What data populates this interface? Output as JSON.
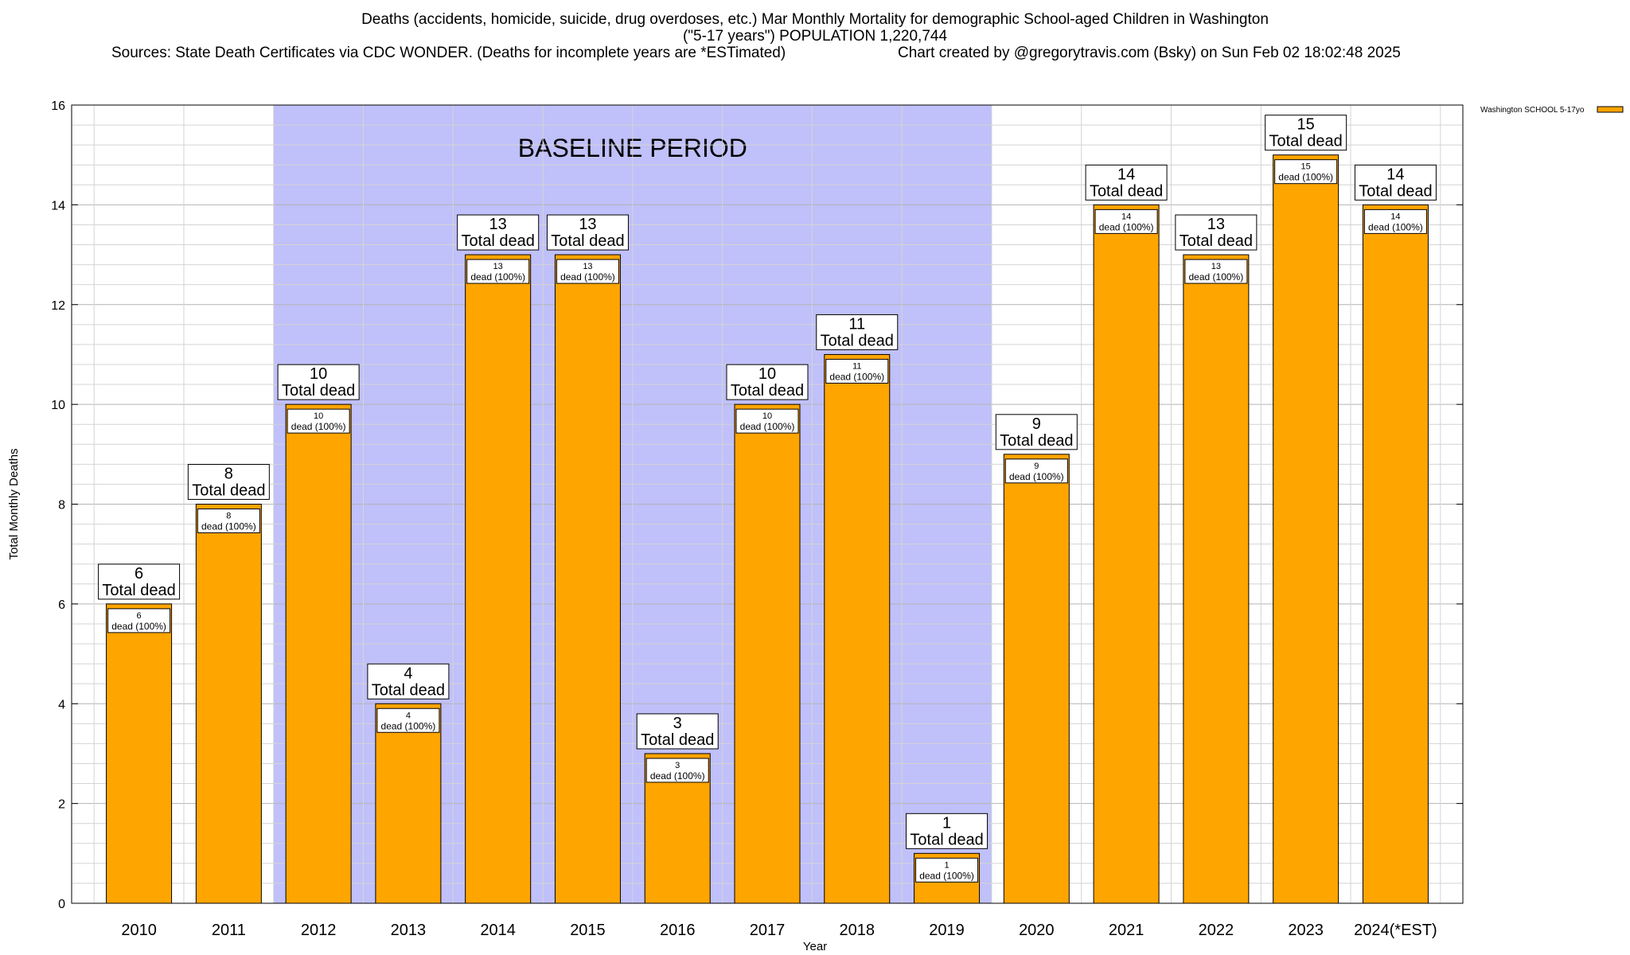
{
  "header": {
    "title_line1": "Deaths (accidents, homicide, suicide, drug overdoses, etc.) Mar Monthly Mortality for demographic School-aged Children in Washington",
    "title_line2": "(\"5-17 years\") POPULATION 1,220,744",
    "sources": "Sources: State Death Certificates via CDC WONDER. (Deaths for incomplete years are *ESTimated)",
    "credit": "Chart created by @gregorytravis.com (Bsky) on Sun Feb 02 18:02:48 2025"
  },
  "chart_data": {
    "type": "bar",
    "xlabel": "Year",
    "ylabel": "Total Monthly Deaths",
    "ylim": [
      0,
      16
    ],
    "y_ticks": [
      0,
      2,
      4,
      6,
      8,
      10,
      12,
      14,
      16
    ],
    "categories": [
      "2010",
      "2011",
      "2012",
      "2013",
      "2014",
      "2015",
      "2016",
      "2017",
      "2018",
      "2019",
      "2020",
      "2021",
      "2022",
      "2023",
      "2024(*EST)"
    ],
    "series": [
      {
        "name": "Washington SCHOOL 5-17yo",
        "values": [
          6,
          8,
          10,
          4,
          13,
          13,
          3,
          10,
          11,
          1,
          9,
          14,
          13,
          15,
          14
        ]
      }
    ],
    "total_label_suffix": "Total dead",
    "segment_label_suffix": "dead (100%)",
    "baseline_period": {
      "label": "BASELINE PERIOD",
      "from": "2012",
      "to": "2019"
    },
    "legend_position": "top-right",
    "grid": true,
    "colors": {
      "bar": "#FFA500",
      "baseline": "#C0C0FA",
      "grid": "#C8C8C8",
      "frame": "#000000"
    }
  }
}
